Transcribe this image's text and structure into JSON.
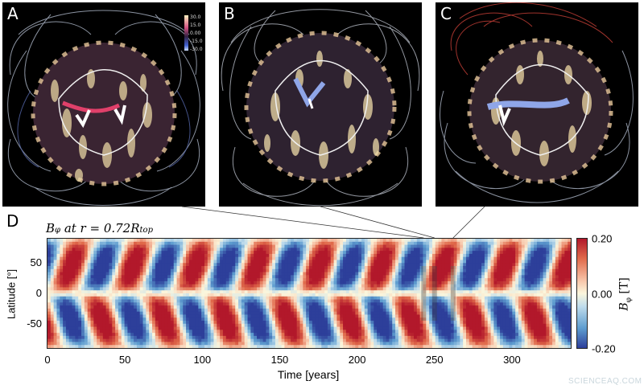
{
  "panels": [
    {
      "letter": "A"
    },
    {
      "letter": "B"
    },
    {
      "letter": "C"
    }
  ],
  "mini_colorbar": {
    "ticks": [
      "30.0",
      "15.0",
      "0.00",
      "-15.0",
      "-30.0"
    ]
  },
  "chart_data": {
    "type": "heatmap",
    "panel_letter": "D",
    "title": "B_φ at r = 0.72R_top",
    "title_parts": {
      "symbol": "B",
      "sub": "φ",
      "mid": " at r = 0.72R",
      "sub2": "top"
    },
    "xlabel": "Time [years]",
    "ylabel": "Latitude [°]",
    "xlim": [
      0,
      338
    ],
    "ylim": [
      -90,
      90
    ],
    "x_ticks": [
      "0",
      "50",
      "100",
      "150",
      "200",
      "250",
      "300"
    ],
    "x_tick_values": [
      0,
      50,
      100,
      150,
      200,
      250,
      300
    ],
    "y_ticks": [
      "50",
      "0",
      "-50"
    ],
    "y_tick_values": [
      50,
      0,
      -50
    ],
    "colorbar": {
      "label": "B_φ [T]",
      "label_parts": {
        "symbol": "B",
        "sub": "φ",
        "unit": " [T]"
      },
      "max": "0.20",
      "mid": "0.00",
      "min": "-0.20",
      "vmin": -0.2,
      "vmax": 0.2
    },
    "cycle_period_years": 40,
    "northern_sign_at_0": 1,
    "highlighted_times": [
      243,
      250,
      262
    ]
  },
  "watermark": "SCIENCEAQ.COM"
}
